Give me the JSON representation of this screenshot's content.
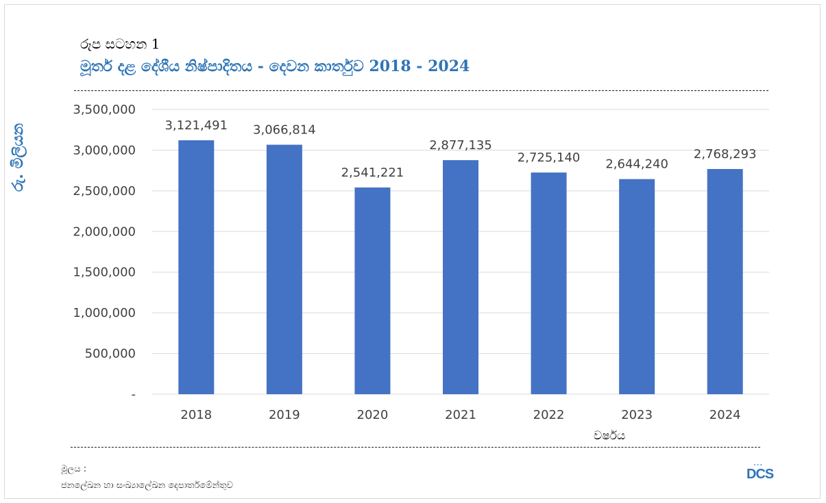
{
  "figure": {
    "label": "රූප සටහන 1",
    "title": "මූර්ත දළ දේශීය නිෂ්පාදිතය - දෙවන කාර්තුව 2018 - 2024"
  },
  "source": {
    "label": "මූලය :",
    "text": "ජනලේඛන හා සංඛ්‍යාලේඛන දෙපාර්තමේන්තුව"
  },
  "logo": {
    "text": "DCS"
  },
  "colors": {
    "bar": "#4472c4",
    "title": "#2e75b6",
    "grid": "#d9d9d9"
  },
  "chart_data": {
    "type": "bar",
    "title": "මූර්ත දළ දේශීය නිෂ්පාදිතය - දෙවන කාර්තුව 2018 - 2024",
    "xlabel": "වර්ෂය",
    "ylabel": "රු. මිලියන",
    "categories": [
      "2018",
      "2019",
      "2020",
      "2021",
      "2022",
      "2023",
      "2024"
    ],
    "values": [
      3121491,
      3066814,
      2541221,
      2877135,
      2725140,
      2644240,
      2768293
    ],
    "value_labels": [
      "3,121,491",
      "3,066,814",
      "2,541,221",
      "2,877,135",
      "2,725,140",
      "2,644,240",
      "2,768,293"
    ],
    "ylim": [
      0,
      3500000
    ],
    "yticks": [
      0,
      500000,
      1000000,
      1500000,
      2000000,
      2500000,
      3000000,
      3500000
    ],
    "ytick_labels": [
      "-",
      "500,000",
      "1,000,000",
      "1,500,000",
      "2,000,000",
      "2,500,000",
      "3,000,000",
      "3,500,000"
    ],
    "grid": true,
    "legend": "none"
  }
}
